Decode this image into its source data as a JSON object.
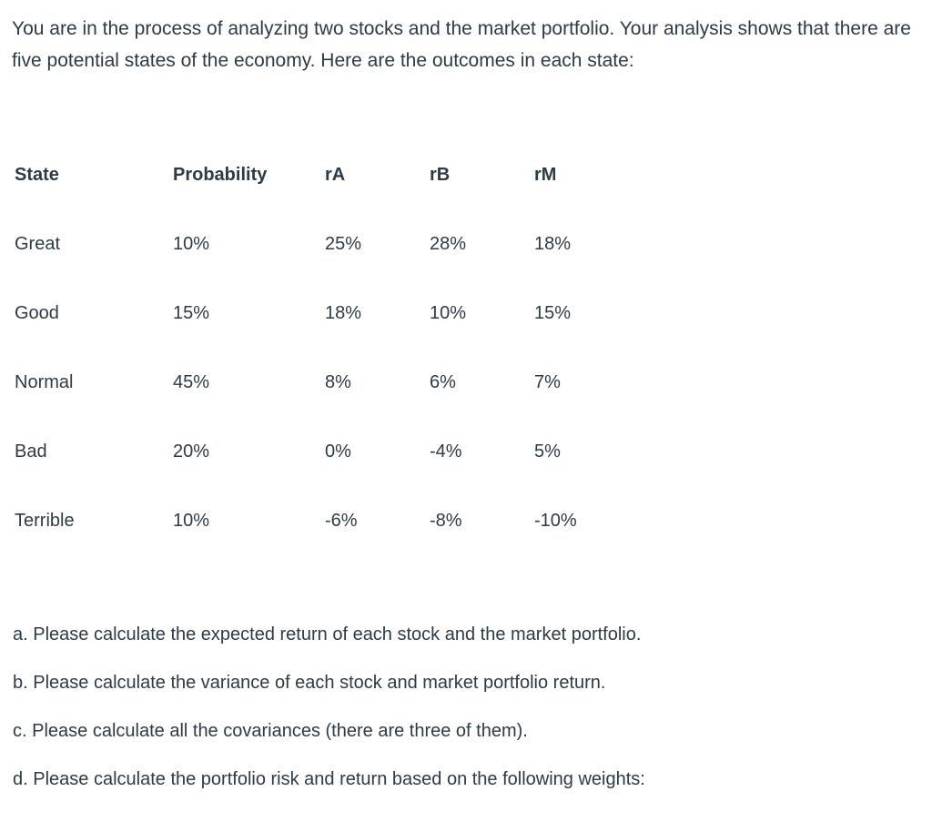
{
  "intro": {
    "text": "You are in the process of analyzing two stocks and the market portfolio. Your analysis shows that there are five potential states of the economy. Here are the outcomes in each state:"
  },
  "table": {
    "headers": [
      "State",
      "Probability",
      "rA",
      "rB",
      "rM"
    ],
    "rows": [
      [
        "Great",
        "10%",
        "25%",
        "28%",
        "18%"
      ],
      [
        "Good",
        "15%",
        "18%",
        "10%",
        "15%"
      ],
      [
        "Normal",
        "45%",
        "8%",
        "6%",
        "7%"
      ],
      [
        "Bad",
        "20%",
        "0%",
        "-4%",
        "5%"
      ],
      [
        "Terrible",
        "10%",
        "-6%",
        "-8%",
        "-10%"
      ]
    ]
  },
  "questions": [
    "a. Please calculate the expected return of each stock and the market portfolio.",
    "b. Please calculate the variance of each stock and market portfolio return.",
    "c. Please calculate all the covariances (there are three of them).",
    "d. Please calculate the portfolio risk and return based on the following weights:"
  ]
}
